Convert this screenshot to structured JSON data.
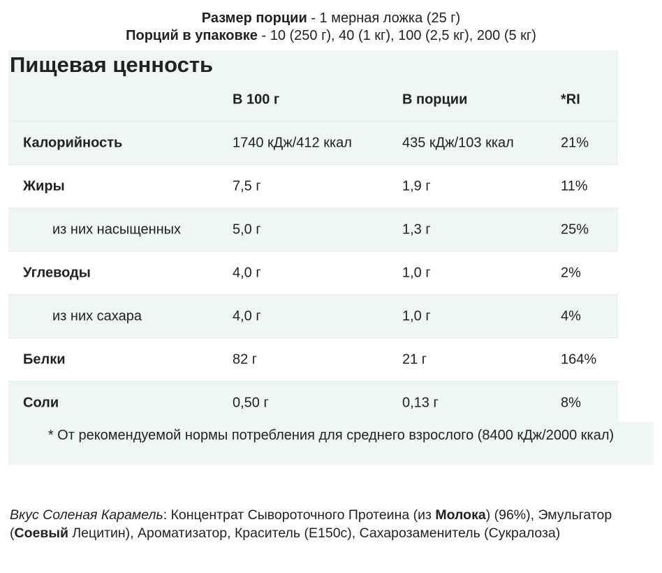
{
  "header": {
    "serving": {
      "label": "Размер порции",
      "text": " - 1 мерная ложка (25 г)"
    },
    "servings_per_pack": {
      "label": "Порций в упаковке",
      "text": " - 10 (250 г), 40 (1 кг), 100 (2,5 кг), 200 (5 кг)"
    },
    "title": "Пищевая ценность"
  },
  "table": {
    "columns": [
      "",
      "В 100 г",
      "В порции",
      "*RI"
    ],
    "rows": [
      {
        "label": "Калорийность",
        "indent": false,
        "cells": [
          "1740 кДж/412 ккал",
          "435 кДж/103 ккал",
          "21%"
        ]
      },
      {
        "label": "Жиры",
        "indent": false,
        "cells": [
          "7,5 г",
          "1,9 г",
          "11%"
        ]
      },
      {
        "label": "из них насыщенных",
        "indent": true,
        "cells": [
          "5,0 г",
          "1,3 г",
          "25%"
        ]
      },
      {
        "label": "Углеводы",
        "indent": false,
        "cells": [
          "4,0 г",
          "1,0 г",
          "2%"
        ]
      },
      {
        "label": "из них сахара",
        "indent": true,
        "cells": [
          "4,0 г",
          "1,0 г",
          "4%"
        ]
      },
      {
        "label": "Белки",
        "indent": false,
        "cells": [
          "82 г",
          "21 г",
          "164%"
        ]
      },
      {
        "label": "Соли",
        "indent": false,
        "cells": [
          "0,50 г",
          "0,13 г",
          "8%"
        ]
      }
    ],
    "footnote": "* От рекомендуемой нормы потребления для среднего взрослого (8400 кДж/2000 ккал)"
  },
  "ingredients": {
    "flavor": "Вкус Соленая Карамель",
    "parts": [
      {
        "text": ": Концентрат Сывороточного Протеина (из ",
        "bold": false
      },
      {
        "text": "Молока",
        "bold": true
      },
      {
        "text": ") (96%), Эмульгатор (",
        "bold": false
      },
      {
        "text": "Соевый",
        "bold": true
      },
      {
        "text": " Лецитин), Ароматизатор, Краситель (E150c), Сахарозаменитель (Сукралоза)",
        "bold": false
      }
    ]
  }
}
